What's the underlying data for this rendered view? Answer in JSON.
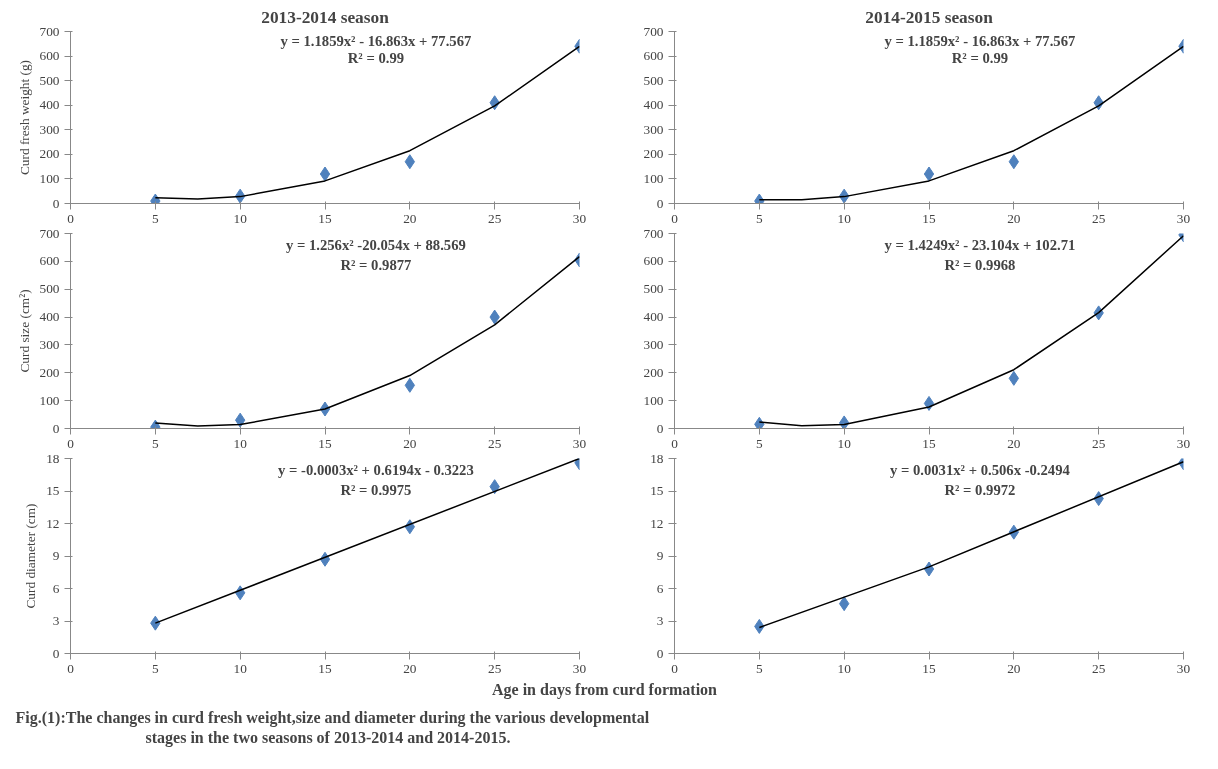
{
  "chart_data": [
    {
      "type": "scatter",
      "title": "2013-2014 season",
      "ylabel": "Curd fresh weight (g)",
      "x": [
        5,
        10,
        15,
        20,
        25,
        30
      ],
      "marker": "diamond",
      "grid": false,
      "xlim": [
        0,
        30
      ],
      "xticks": [
        0,
        5,
        10,
        15,
        20,
        25,
        30
      ],
      "ylim": [
        0,
        700
      ],
      "yticks": [
        0,
        100,
        200,
        300,
        400,
        500,
        600,
        700
      ],
      "annotations": [
        "y = 1.1859x² - 16.863x + 77.567",
        "R² = 0.99"
      ],
      "series": [
        {
          "color": "#4f81bd",
          "values": [
            10,
            30,
            120,
            170,
            410,
            640
          ]
        },
        {
          "type": "line",
          "marker": "none",
          "color": "#000000",
          "x": [
            5,
            7.5,
            10,
            15,
            20,
            25,
            30
          ],
          "values": [
            23,
            18,
            28,
            92,
            215,
            397,
            639
          ]
        }
      ]
    },
    {
      "type": "scatter",
      "title": "2014-2015 season",
      "x": [
        5,
        10,
        15,
        20,
        25,
        30
      ],
      "marker": "diamond",
      "grid": false,
      "xlim": [
        0,
        30
      ],
      "xticks": [
        0,
        5,
        10,
        15,
        20,
        25,
        30
      ],
      "ylim": [
        0,
        700
      ],
      "yticks": [
        0,
        100,
        200,
        300,
        400,
        500,
        600,
        700
      ],
      "annotations": [
        "y = 1.1859x² - 16.863x + 77.567",
        "R² = 0.99"
      ],
      "series": [
        {
          "color": "#4f81bd",
          "values": [
            10,
            30,
            120,
            170,
            410,
            640
          ]
        },
        {
          "type": "line",
          "marker": "none",
          "color": "#000000",
          "x": [
            5,
            7.5,
            10,
            15,
            20,
            25,
            30
          ],
          "values": [
            15,
            15,
            28,
            92,
            215,
            397,
            639
          ]
        }
      ]
    },
    {
      "type": "scatter",
      "ylabel": "Curd size (cm²)",
      "x": [
        5,
        10,
        15,
        20,
        25,
        30
      ],
      "marker": "diamond",
      "grid": false,
      "xlim": [
        0,
        30
      ],
      "xticks": [
        0,
        5,
        10,
        15,
        20,
        25,
        30
      ],
      "ylim": [
        0,
        700
      ],
      "yticks": [
        0,
        100,
        200,
        300,
        400,
        500,
        600,
        700
      ],
      "annotations": [
        "y = 1.256x² -20.054x + 88.569",
        "R² = 0.9877"
      ],
      "series": [
        {
          "color": "#4f81bd",
          "values": [
            5,
            30,
            70,
            155,
            400,
            605
          ]
        },
        {
          "type": "line",
          "marker": "none",
          "color": "#000000",
          "x": [
            5,
            7.5,
            10,
            15,
            20,
            25,
            30
          ],
          "values": [
            20,
            9,
            14,
            70,
            190,
            372,
            617
          ]
        }
      ]
    },
    {
      "type": "scatter",
      "x": [
        5,
        10,
        15,
        20,
        25,
        30
      ],
      "marker": "diamond",
      "grid": false,
      "xlim": [
        0,
        30
      ],
      "xticks": [
        0,
        5,
        10,
        15,
        20,
        25,
        30
      ],
      "ylim": [
        0,
        700
      ],
      "yticks": [
        0,
        100,
        200,
        300,
        400,
        500,
        600,
        700
      ],
      "annotations": [
        "y = 1.4249x² - 23.104x + 102.71",
        "R² = 0.9968"
      ],
      "series": [
        {
          "color": "#4f81bd",
          "values": [
            15,
            20,
            90,
            180,
            415,
            695
          ]
        },
        {
          "type": "line",
          "marker": "none",
          "color": "#000000",
          "x": [
            5,
            7.5,
            10,
            15,
            20,
            25,
            30
          ],
          "values": [
            23,
            10,
            14,
            77,
            211,
            416,
            692
          ]
        }
      ]
    },
    {
      "type": "scatter",
      "ylabel": "Curd diameter (cm)",
      "x": [
        5,
        10,
        15,
        20,
        25,
        30
      ],
      "marker": "diamond",
      "grid": false,
      "xlim": [
        0,
        30
      ],
      "xticks": [
        0,
        5,
        10,
        15,
        20,
        25,
        30
      ],
      "ylim": [
        0,
        18
      ],
      "yticks": [
        0,
        3,
        6,
        9,
        12,
        15,
        18
      ],
      "annotations": [
        "y = -0.0003x² + 0.6194x - 0.3223",
        "R² = 0.9975"
      ],
      "series": [
        {
          "color": "#4f81bd",
          "values": [
            2.8,
            5.6,
            8.7,
            11.7,
            15.4,
            17.6
          ]
        },
        {
          "type": "line",
          "marker": "none",
          "color": "#000000",
          "x": [
            5,
            30
          ],
          "values": [
            2.8,
            18
          ]
        }
      ]
    },
    {
      "type": "scatter",
      "x": [
        5,
        10,
        15,
        20,
        25,
        30
      ],
      "marker": "diamond",
      "grid": false,
      "xlim": [
        0,
        30
      ],
      "xticks": [
        0,
        5,
        10,
        15,
        20,
        25,
        30
      ],
      "ylim": [
        0,
        18
      ],
      "yticks": [
        0,
        3,
        6,
        9,
        12,
        15,
        18
      ],
      "annotations": [
        "y = 0.0031x² + 0.506x -0.2494",
        "R² = 0.9972"
      ],
      "series": [
        {
          "color": "#4f81bd",
          "values": [
            2.5,
            4.6,
            7.8,
            11.2,
            14.3,
            17.6
          ]
        },
        {
          "type": "line",
          "marker": "none",
          "color": "#000000",
          "x": [
            5,
            15,
            30
          ],
          "values": [
            2.4,
            8,
            17.7
          ]
        }
      ]
    },
    {
      "type": "other",
      "xlabel": "Age in days from curd formation",
      "annotations": [
        "Fig.(1):The changes in curd fresh weight,size and diameter during the various developmental",
        "stages in  the two seasons of 2013-2014 and 2014-2015."
      ]
    }
  ]
}
